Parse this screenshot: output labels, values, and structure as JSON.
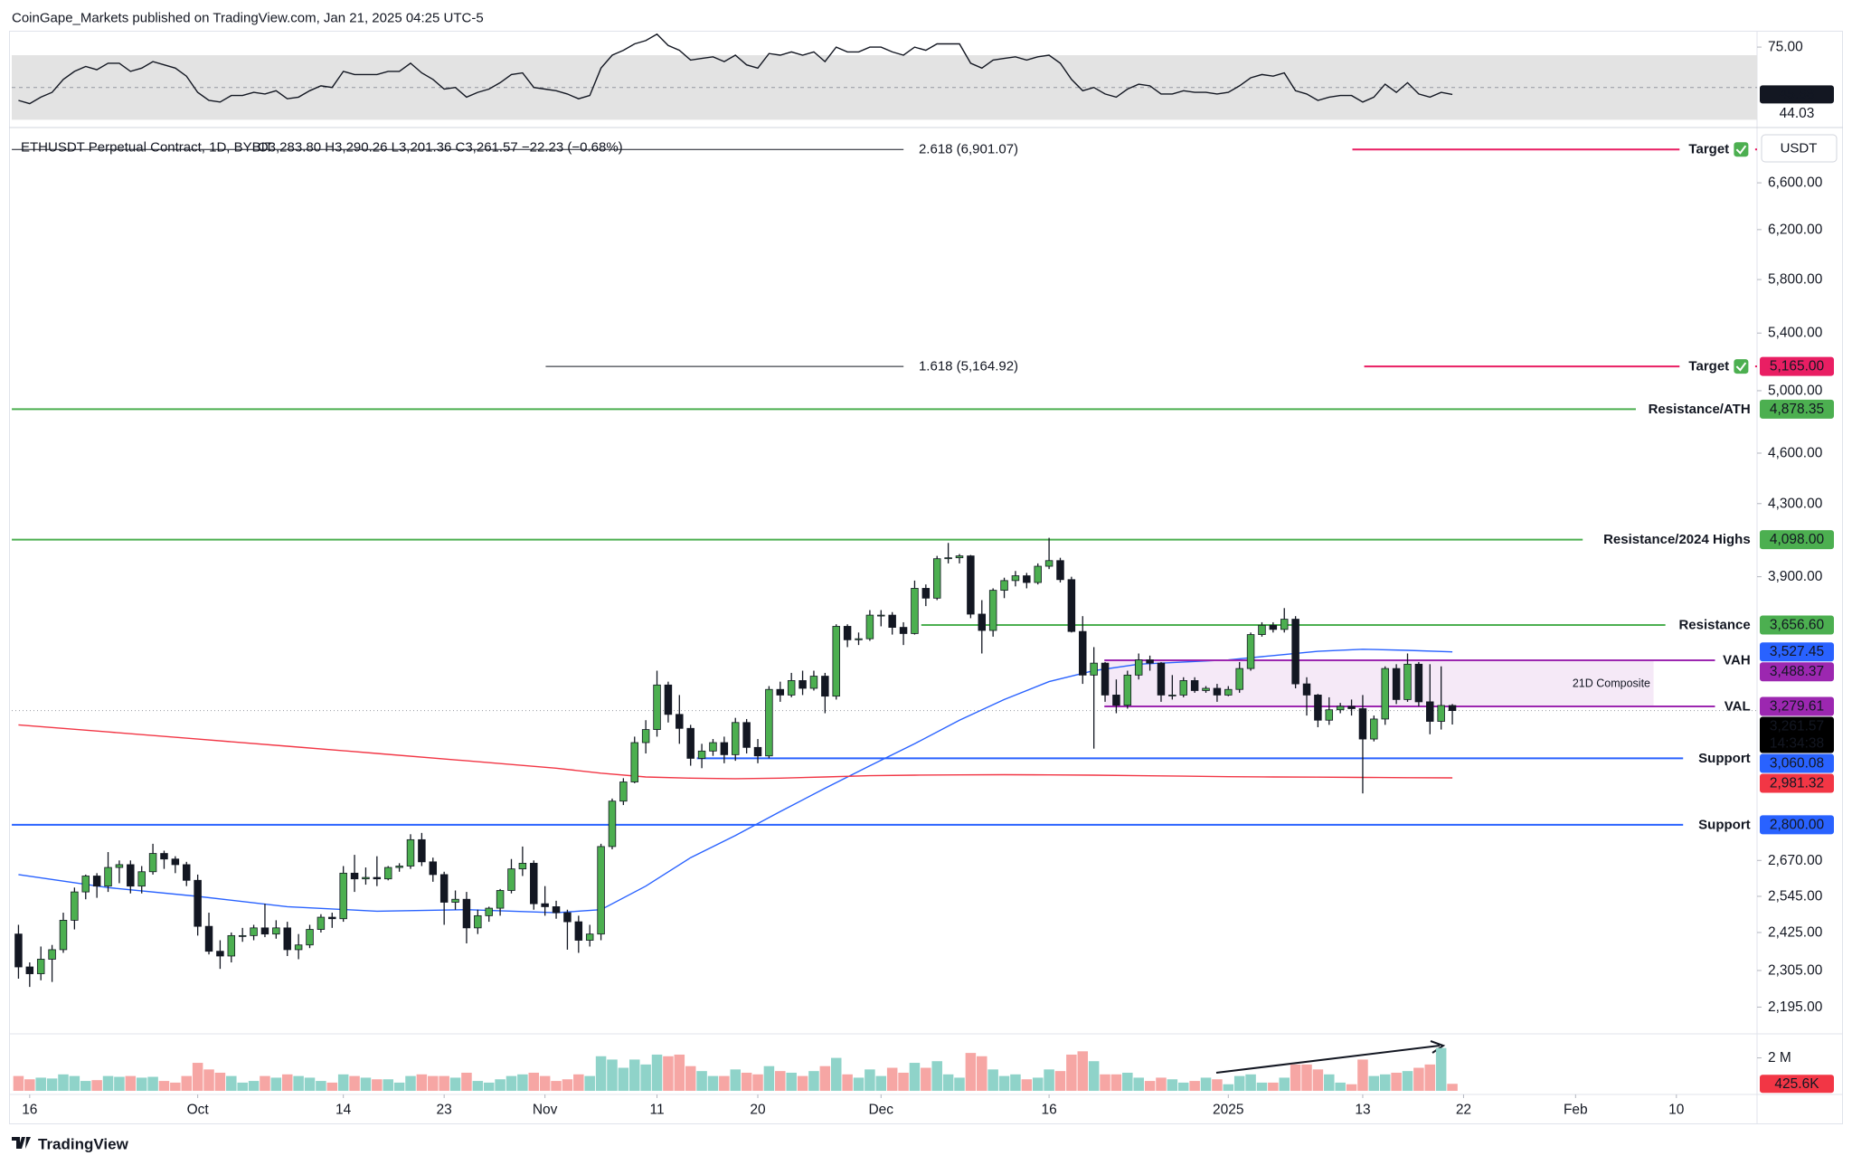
{
  "header": {
    "publisher": "CoinGape_Markets published on TradingView.com, Jan 21, 2025 04:25 UTC-5",
    "logo": "TradingView"
  },
  "chart_data": {
    "type": "candlestick",
    "title": "ETHUSDT Perpetual Contract, 1D, BYBIT",
    "ohlc_legend": "O3,283.80 H3,290.26 L3,201.36 C3,261.57 −22.23 (−0.68%)",
    "currency": "USDT",
    "y_scale": "log",
    "grid": false,
    "up_color": "#4caf50",
    "down_color": "#131722",
    "xlim": [
      -0.6,
      155.2
    ],
    "xticks": [
      {
        "value": 1,
        "label": "16"
      },
      {
        "value": 16,
        "label": "Oct"
      },
      {
        "value": 29,
        "label": "14"
      },
      {
        "value": 38,
        "label": "23"
      },
      {
        "value": 47,
        "label": "Nov"
      },
      {
        "value": 57,
        "label": "11"
      },
      {
        "value": 66,
        "label": "20"
      },
      {
        "value": 77,
        "label": "Dec"
      },
      {
        "value": 92,
        "label": "16"
      },
      {
        "value": 108,
        "label": "2025"
      },
      {
        "value": 120,
        "label": "13"
      },
      {
        "value": 129,
        "label": "22"
      },
      {
        "value": 139,
        "label": "Feb"
      },
      {
        "value": 148,
        "label": "10"
      }
    ],
    "ylim": [
      2118,
      7080
    ],
    "yticks": [
      {
        "value": 6600,
        "label": "6,600.00"
      },
      {
        "value": 6200,
        "label": "6,200.00"
      },
      {
        "value": 5800,
        "label": "5,800.00"
      },
      {
        "value": 5400,
        "label": "5,400.00"
      },
      {
        "value": 5000,
        "label": "5,000.00"
      },
      {
        "value": 4600,
        "label": "4,600.00"
      },
      {
        "value": 4300,
        "label": "4,300.00"
      },
      {
        "value": 3900,
        "label": "3,900.00"
      },
      {
        "value": 2670,
        "label": "2,670.00"
      },
      {
        "value": 2545,
        "label": "2,545.00"
      },
      {
        "value": 2425,
        "label": "2,425.00"
      },
      {
        "value": 2305,
        "label": "2,305.00"
      },
      {
        "value": 2195,
        "label": "2,195.00"
      }
    ],
    "ohlc": [
      [
        2420,
        2450,
        2280,
        2316
      ],
      [
        2316,
        2330,
        2255,
        2295
      ],
      [
        2295,
        2380,
        2275,
        2340
      ],
      [
        2340,
        2385,
        2270,
        2370
      ],
      [
        2370,
        2490,
        2360,
        2465
      ],
      [
        2465,
        2575,
        2435,
        2560
      ],
      [
        2560,
        2620,
        2535,
        2615
      ],
      [
        2615,
        2625,
        2540,
        2580
      ],
      [
        2580,
        2700,
        2560,
        2645
      ],
      [
        2645,
        2670,
        2590,
        2655
      ],
      [
        2655,
        2670,
        2555,
        2580
      ],
      [
        2580,
        2650,
        2555,
        2630
      ],
      [
        2630,
        2730,
        2620,
        2695
      ],
      [
        2695,
        2705,
        2640,
        2675
      ],
      [
        2675,
        2685,
        2625,
        2655
      ],
      [
        2655,
        2665,
        2580,
        2600
      ],
      [
        2600,
        2620,
        2415,
        2445
      ],
      [
        2445,
        2490,
        2355,
        2365
      ],
      [
        2365,
        2400,
        2310,
        2350
      ],
      [
        2350,
        2425,
        2330,
        2415
      ],
      [
        2415,
        2440,
        2395,
        2415
      ],
      [
        2415,
        2450,
        2400,
        2440
      ],
      [
        2440,
        2520,
        2410,
        2420
      ],
      [
        2420,
        2465,
        2405,
        2440
      ],
      [
        2440,
        2460,
        2350,
        2370
      ],
      [
        2370,
        2420,
        2340,
        2385
      ],
      [
        2385,
        2450,
        2375,
        2435
      ],
      [
        2435,
        2485,
        2425,
        2475
      ],
      [
        2475,
        2490,
        2440,
        2470
      ],
      [
        2470,
        2650,
        2460,
        2625
      ],
      [
        2625,
        2690,
        2560,
        2605
      ],
      [
        2605,
        2645,
        2585,
        2610
      ],
      [
        2610,
        2685,
        2580,
        2605
      ],
      [
        2605,
        2650,
        2600,
        2645
      ],
      [
        2645,
        2660,
        2630,
        2650
      ],
      [
        2650,
        2765,
        2640,
        2745
      ],
      [
        2745,
        2770,
        2650,
        2665
      ],
      [
        2665,
        2680,
        2595,
        2620
      ],
      [
        2620,
        2630,
        2450,
        2525
      ],
      [
        2525,
        2565,
        2500,
        2535
      ],
      [
        2535,
        2560,
        2390,
        2440
      ],
      [
        2440,
        2500,
        2420,
        2480
      ],
      [
        2480,
        2510,
        2460,
        2505
      ],
      [
        2505,
        2570,
        2480,
        2565
      ],
      [
        2565,
        2675,
        2555,
        2640
      ],
      [
        2640,
        2720,
        2615,
        2660
      ],
      [
        2660,
        2670,
        2500,
        2520
      ],
      [
        2520,
        2580,
        2480,
        2510
      ],
      [
        2510,
        2530,
        2470,
        2490
      ],
      [
        2490,
        2500,
        2370,
        2460
      ],
      [
        2460,
        2480,
        2360,
        2400
      ],
      [
        2400,
        2450,
        2380,
        2420
      ],
      [
        2420,
        2730,
        2400,
        2720
      ],
      [
        2720,
        2900,
        2710,
        2890
      ],
      [
        2890,
        2980,
        2875,
        2965
      ],
      [
        2965,
        3150,
        2960,
        3125
      ],
      [
        3125,
        3220,
        3080,
        3180
      ],
      [
        3180,
        3440,
        3150,
        3375
      ],
      [
        3375,
        3390,
        3210,
        3245
      ],
      [
        3245,
        3330,
        3120,
        3185
      ],
      [
        3185,
        3200,
        3030,
        3060
      ],
      [
        3060,
        3120,
        3020,
        3090
      ],
      [
        3090,
        3140,
        3070,
        3125
      ],
      [
        3125,
        3150,
        3040,
        3075
      ],
      [
        3075,
        3230,
        3050,
        3210
      ],
      [
        3210,
        3225,
        3080,
        3105
      ],
      [
        3105,
        3140,
        3040,
        3070
      ],
      [
        3070,
        3370,
        3060,
        3355
      ],
      [
        3355,
        3390,
        3300,
        3330
      ],
      [
        3330,
        3430,
        3320,
        3395
      ],
      [
        3395,
        3440,
        3330,
        3360
      ],
      [
        3360,
        3440,
        3350,
        3415
      ],
      [
        3415,
        3430,
        3250,
        3325
      ],
      [
        3325,
        3660,
        3310,
        3650
      ],
      [
        3650,
        3660,
        3550,
        3585
      ],
      [
        3585,
        3620,
        3560,
        3590
      ],
      [
        3590,
        3730,
        3580,
        3705
      ],
      [
        3705,
        3730,
        3650,
        3705
      ],
      [
        3705,
        3720,
        3610,
        3645
      ],
      [
        3645,
        3670,
        3560,
        3615
      ],
      [
        3615,
        3880,
        3610,
        3840
      ],
      [
        3840,
        3860,
        3750,
        3790
      ],
      [
        3790,
        4010,
        3780,
        3995
      ],
      [
        3995,
        4080,
        3970,
        4000
      ],
      [
        4000,
        4020,
        3970,
        4010
      ],
      [
        4010,
        4015,
        3690,
        3710
      ],
      [
        3710,
        3780,
        3520,
        3630
      ],
      [
        3630,
        3840,
        3600,
        3830
      ],
      [
        3830,
        3895,
        3790,
        3880
      ],
      [
        3880,
        3930,
        3850,
        3905
      ],
      [
        3905,
        3920,
        3840,
        3870
      ],
      [
        3870,
        3970,
        3860,
        3955
      ],
      [
        3955,
        4108,
        3940,
        3985
      ],
      [
        3985,
        4000,
        3870,
        3885
      ],
      [
        3885,
        3900,
        3620,
        3625
      ],
      [
        3625,
        3700,
        3380,
        3420
      ],
      [
        3420,
        3550,
        3100,
        3475
      ],
      [
        3475,
        3480,
        3300,
        3330
      ],
      [
        3330,
        3400,
        3250,
        3285
      ],
      [
        3285,
        3440,
        3270,
        3420
      ],
      [
        3420,
        3520,
        3400,
        3490
      ],
      [
        3490,
        3510,
        3440,
        3475
      ],
      [
        3475,
        3480,
        3300,
        3330
      ],
      [
        3330,
        3420,
        3310,
        3330
      ],
      [
        3330,
        3410,
        3320,
        3395
      ],
      [
        3395,
        3410,
        3340,
        3350
      ],
      [
        3350,
        3370,
        3340,
        3360
      ],
      [
        3360,
        3380,
        3300,
        3330
      ],
      [
        3330,
        3370,
        3325,
        3355
      ],
      [
        3355,
        3480,
        3340,
        3450
      ],
      [
        3450,
        3620,
        3440,
        3610
      ],
      [
        3610,
        3670,
        3600,
        3655
      ],
      [
        3655,
        3670,
        3620,
        3635
      ],
      [
        3635,
        3740,
        3620,
        3685
      ],
      [
        3685,
        3700,
        3360,
        3380
      ],
      [
        3380,
        3410,
        3240,
        3330
      ],
      [
        3330,
        3335,
        3190,
        3220
      ],
      [
        3220,
        3320,
        3200,
        3265
      ],
      [
        3265,
        3295,
        3250,
        3280
      ],
      [
        3280,
        3310,
        3240,
        3270
      ],
      [
        3270,
        3330,
        2920,
        3140
      ],
      [
        3140,
        3240,
        3130,
        3225
      ],
      [
        3225,
        3460,
        3200,
        3450
      ],
      [
        3450,
        3470,
        3290,
        3310
      ],
      [
        3310,
        3520,
        3300,
        3470
      ],
      [
        3470,
        3480,
        3280,
        3300
      ],
      [
        3300,
        3470,
        3160,
        3215
      ],
      [
        3215,
        3460,
        3180,
        3283.8
      ],
      [
        3283.8,
        3290.26,
        3201.36,
        3261.57
      ]
    ],
    "close_label": "3,261.57",
    "countdown": "14:34:38",
    "levels": [
      {
        "label": "2.618 (6,901.07)",
        "value": 6901.07,
        "color": "#131722"
      },
      {
        "label": "1.618 (5,164.92)",
        "value": 5164.92,
        "color": "#131722"
      },
      {
        "label": "Target",
        "value": 6901.07,
        "color": "#e91e63"
      },
      {
        "label": "Target",
        "value": 5165,
        "value_label": "5,165.00",
        "color": "#e91e63"
      },
      {
        "label": "Resistance/ATH",
        "value": 4878.35,
        "value_label": "4,878.35",
        "color": "#4caf50",
        "label_color": "#131722"
      },
      {
        "label": "Resistance/2024 Highs",
        "value": 4098,
        "value_label": "4,098.00",
        "color": "#4caf50",
        "label_color": "#131722"
      },
      {
        "label": "Resistance",
        "value": 3656.6,
        "value_label": "3,656.60",
        "color": "#4caf50",
        "label_color": "#131722"
      },
      {
        "label": "VAH",
        "value": 3488.37,
        "value_label": "3,488.37",
        "color": "#9c27b0",
        "label_color": "#131722"
      },
      {
        "label": "VAL",
        "value": 3279.61,
        "value_label": "3,279.61",
        "color": "#9c27b0",
        "label_color": "#131722"
      },
      {
        "label": "Support",
        "value": 3060.08,
        "value_label": "3,060.08",
        "color": "#2962ff",
        "label_color": "#f23645"
      },
      {
        "label": "Support",
        "value": 2800,
        "value_label": "2,800.00",
        "color": "#2962ff",
        "label_color": "#f23645"
      }
    ],
    "composite_label": "21D Composite",
    "ma": [
      {
        "color": "#2962ff",
        "x": [
          0,
          8,
          16,
          24,
          32,
          40,
          48,
          52,
          56,
          60,
          64,
          68,
          72,
          76,
          80,
          84,
          88,
          92,
          96,
          100,
          104,
          108,
          112,
          116,
          120,
          124,
          128
        ],
        "values": [
          2620,
          2575,
          2545,
          2510,
          2495,
          2500,
          2490,
          2500,
          2580,
          2680,
          2760,
          2850,
          2940,
          3030,
          3120,
          3220,
          3310,
          3390,
          3440,
          3470,
          3480,
          3490,
          3510,
          3530,
          3540,
          3535,
          3527.45
        ],
        "value_label": "3,527.45"
      },
      {
        "color": "#f23645",
        "x": [
          0,
          8,
          16,
          24,
          32,
          40,
          48,
          52,
          56,
          60,
          64,
          68,
          72,
          76,
          80,
          84,
          88,
          92,
          96,
          100,
          104,
          108,
          112,
          116,
          120,
          124,
          128
        ],
        "values": [
          3200,
          3170,
          3140,
          3110,
          3080,
          3050,
          3020,
          3000,
          2985,
          2980,
          2978,
          2980,
          2985,
          2990,
          2992,
          2993,
          2994,
          2993,
          2992,
          2990,
          2988,
          2986,
          2985,
          2984,
          2983,
          2982,
          2981.32
        ],
        "value_label": "2,981.32"
      }
    ],
    "rsi": {
      "ylim": [
        28,
        84
      ],
      "yticks": [
        {
          "value": 75,
          "label": "75.00"
        }
      ],
      "band": [
        30,
        70
      ],
      "mid": 50,
      "color": "#131722",
      "ma_value": 44.03,
      "values": [
        42,
        40,
        44,
        47,
        55,
        60,
        63,
        61,
        65,
        65,
        60,
        62,
        66,
        64,
        62,
        57,
        47,
        42,
        41,
        45,
        45,
        47,
        46,
        48,
        43,
        44,
        48,
        51,
        50,
        60,
        58,
        58,
        58,
        60,
        60,
        65,
        59,
        55,
        49,
        50,
        44,
        47,
        49,
        53,
        58,
        59,
        50,
        49,
        48,
        46,
        43,
        45,
        62,
        70,
        73,
        77,
        79,
        83,
        76,
        73,
        67,
        68,
        69,
        66,
        70,
        64,
        62,
        71,
        70,
        72,
        70,
        72,
        66,
        75,
        72,
        72,
        75,
        75,
        72,
        70,
        75,
        73,
        77,
        77,
        77,
        65,
        62,
        67,
        68,
        69,
        67,
        69,
        70,
        65,
        55,
        48,
        50,
        46,
        44,
        49,
        52,
        51,
        46,
        46,
        48,
        47,
        47,
        46,
        47,
        51,
        56,
        58,
        57,
        59,
        48,
        46,
        42,
        44,
        45,
        45,
        41,
        44,
        52,
        47,
        53,
        46,
        44,
        47,
        45.68
      ]
    },
    "volume": {
      "ylim": [
        0,
        3350000
      ],
      "yticks": [
        {
          "value": 2000000,
          "label": "2 M"
        }
      ],
      "up_color": "#8fd3c9",
      "down_color": "#f6a6a4",
      "last_label": "425.6K",
      "values": [
        900000,
        700000,
        800000,
        750000,
        1000000,
        900000,
        600000,
        650000,
        900000,
        850000,
        900000,
        800000,
        850000,
        600000,
        500000,
        900000,
        1700000,
        1300000,
        1100000,
        900000,
        500000,
        600000,
        900000,
        800000,
        1000000,
        900000,
        800000,
        600000,
        500000,
        1000000,
        900000,
        800000,
        700000,
        700000,
        500000,
        900000,
        1000000,
        900000,
        900000,
        800000,
        1100000,
        600000,
        500000,
        700000,
        900000,
        1000000,
        1100000,
        900000,
        600000,
        700000,
        1000000,
        900000,
        2100000,
        1900000,
        1400000,
        1900000,
        1600000,
        2200000,
        2100000,
        2200000,
        1500000,
        1200000,
        900000,
        900000,
        1300000,
        1100000,
        1000000,
        1500000,
        1200000,
        1100000,
        900000,
        1200000,
        1500000,
        2000000,
        1000000,
        800000,
        1300000,
        900000,
        1400000,
        1100000,
        1700000,
        1400000,
        1800000,
        1000000,
        800000,
        2300000,
        2100000,
        1300000,
        900000,
        1000000,
        700000,
        800000,
        1300000,
        1200000,
        2200000,
        2400000,
        1800000,
        1000000,
        1000000,
        1100000,
        800000,
        600000,
        800000,
        700000,
        500000,
        600000,
        800000,
        700000,
        400000,
        900000,
        1000000,
        500000,
        500000,
        800000,
        1600000,
        1600000,
        1300000,
        1000000,
        500000,
        400000,
        1900000,
        900000,
        1000000,
        1100000,
        1200000,
        1400000,
        1600000,
        2600000,
        425600
      ]
    }
  }
}
